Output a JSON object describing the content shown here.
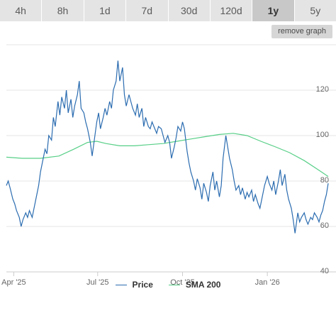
{
  "timeframes": {
    "tabs": [
      {
        "label": "4h",
        "active": false
      },
      {
        "label": "8h",
        "active": false
      },
      {
        "label": "1d",
        "active": false
      },
      {
        "label": "7d",
        "active": false
      },
      {
        "label": "30d",
        "active": false
      },
      {
        "label": "120d",
        "active": false
      },
      {
        "label": "1y",
        "active": true
      },
      {
        "label": "5y",
        "active": false
      }
    ]
  },
  "remove_graph_label": "remove graph",
  "colors": {
    "price": "#2b6cb0",
    "sma": "#57cf87",
    "gridline": "#e6e6e6",
    "axis": "#cccccc",
    "tab_bg": "#e4e4e4",
    "tab_active_bg": "#c8c8c8"
  },
  "chart_data": {
    "type": "line",
    "x_range": [
      "2025-03-24",
      "2026-03-08"
    ],
    "ylim": [
      40,
      140
    ],
    "y_ticks": [
      40,
      60,
      80,
      100,
      120
    ],
    "x_ticks": [
      {
        "label": "Apr '25",
        "date": "2025-04-01"
      },
      {
        "label": "Jul '25",
        "date": "2025-07-01"
      },
      {
        "label": "Oct '25",
        "date": "2025-10-01"
      },
      {
        "label": "Jan '26",
        "date": "2026-01-01"
      }
    ],
    "grid": true,
    "legend_position": "bottom-center",
    "series": [
      {
        "name": "Price",
        "points": [
          [
            "2025-03-24",
            78
          ],
          [
            "2025-03-26",
            80
          ],
          [
            "2025-03-28",
            77
          ],
          [
            "2025-03-31",
            72
          ],
          [
            "2025-04-02",
            70
          ],
          [
            "2025-04-04",
            67
          ],
          [
            "2025-04-07",
            64
          ],
          [
            "2025-04-09",
            60
          ],
          [
            "2025-04-11",
            63
          ],
          [
            "2025-04-14",
            66
          ],
          [
            "2025-04-16",
            64
          ],
          [
            "2025-04-18",
            67
          ],
          [
            "2025-04-21",
            64
          ],
          [
            "2025-04-23",
            68
          ],
          [
            "2025-04-25",
            72
          ],
          [
            "2025-04-28",
            78
          ],
          [
            "2025-04-30",
            84
          ],
          [
            "2025-05-02",
            88
          ],
          [
            "2025-05-05",
            94
          ],
          [
            "2025-05-07",
            92
          ],
          [
            "2025-05-09",
            100
          ],
          [
            "2025-05-12",
            98
          ],
          [
            "2025-05-14",
            108
          ],
          [
            "2025-05-16",
            104
          ],
          [
            "2025-05-19",
            115
          ],
          [
            "2025-05-21",
            109
          ],
          [
            "2025-05-23",
            117
          ],
          [
            "2025-05-26",
            112
          ],
          [
            "2025-05-28",
            120
          ],
          [
            "2025-05-30",
            110
          ],
          [
            "2025-06-02",
            116
          ],
          [
            "2025-06-04",
            108
          ],
          [
            "2025-06-06",
            113
          ],
          [
            "2025-06-09",
            118
          ],
          [
            "2025-06-11",
            124
          ],
          [
            "2025-06-13",
            112
          ],
          [
            "2025-06-16",
            110
          ],
          [
            "2025-06-18",
            106
          ],
          [
            "2025-06-20",
            103
          ],
          [
            "2025-06-23",
            97
          ],
          [
            "2025-06-25",
            91
          ],
          [
            "2025-06-27",
            97
          ],
          [
            "2025-06-30",
            106
          ],
          [
            "2025-07-02",
            110
          ],
          [
            "2025-07-04",
            103
          ],
          [
            "2025-07-07",
            108
          ],
          [
            "2025-07-09",
            112
          ],
          [
            "2025-07-11",
            109
          ],
          [
            "2025-07-14",
            115
          ],
          [
            "2025-07-16",
            112
          ],
          [
            "2025-07-18",
            120
          ],
          [
            "2025-07-21",
            124
          ],
          [
            "2025-07-23",
            133
          ],
          [
            "2025-07-25",
            124
          ],
          [
            "2025-07-28",
            130
          ],
          [
            "2025-07-30",
            118
          ],
          [
            "2025-08-01",
            113
          ],
          [
            "2025-08-04",
            118
          ],
          [
            "2025-08-06",
            115
          ],
          [
            "2025-08-08",
            112
          ],
          [
            "2025-08-11",
            109
          ],
          [
            "2025-08-13",
            114
          ],
          [
            "2025-08-15",
            108
          ],
          [
            "2025-08-18",
            112
          ],
          [
            "2025-08-20",
            104
          ],
          [
            "2025-08-22",
            108
          ],
          [
            "2025-08-25",
            104
          ],
          [
            "2025-08-27",
            103
          ],
          [
            "2025-08-29",
            106
          ],
          [
            "2025-09-01",
            103
          ],
          [
            "2025-09-03",
            101
          ],
          [
            "2025-09-05",
            104
          ],
          [
            "2025-09-08",
            103
          ],
          [
            "2025-09-10",
            100
          ],
          [
            "2025-09-12",
            97
          ],
          [
            "2025-09-15",
            100
          ],
          [
            "2025-09-17",
            97
          ],
          [
            "2025-09-19",
            90
          ],
          [
            "2025-09-22",
            95
          ],
          [
            "2025-09-24",
            99
          ],
          [
            "2025-09-26",
            104
          ],
          [
            "2025-09-29",
            102
          ],
          [
            "2025-10-01",
            106
          ],
          [
            "2025-10-03",
            103
          ],
          [
            "2025-10-06",
            93
          ],
          [
            "2025-10-08",
            88
          ],
          [
            "2025-10-10",
            84
          ],
          [
            "2025-10-13",
            80
          ],
          [
            "2025-10-15",
            76
          ],
          [
            "2025-10-17",
            81
          ],
          [
            "2025-10-20",
            77
          ],
          [
            "2025-10-22",
            72
          ],
          [
            "2025-10-24",
            79
          ],
          [
            "2025-10-27",
            75
          ],
          [
            "2025-10-29",
            71
          ],
          [
            "2025-10-31",
            78
          ],
          [
            "2025-11-03",
            84
          ],
          [
            "2025-11-05",
            76
          ],
          [
            "2025-11-07",
            80
          ],
          [
            "2025-11-10",
            73
          ],
          [
            "2025-11-12",
            78
          ],
          [
            "2025-11-14",
            90
          ],
          [
            "2025-11-17",
            100
          ],
          [
            "2025-11-19",
            95
          ],
          [
            "2025-11-21",
            90
          ],
          [
            "2025-11-24",
            85
          ],
          [
            "2025-11-26",
            80
          ],
          [
            "2025-11-28",
            76
          ],
          [
            "2025-12-01",
            78
          ],
          [
            "2025-12-03",
            74
          ],
          [
            "2025-12-05",
            77
          ],
          [
            "2025-12-08",
            72
          ],
          [
            "2025-12-10",
            75
          ],
          [
            "2025-12-12",
            73
          ],
          [
            "2025-12-15",
            76
          ],
          [
            "2025-12-17",
            71
          ],
          [
            "2025-12-19",
            74
          ],
          [
            "2025-12-22",
            70
          ],
          [
            "2025-12-24",
            68
          ],
          [
            "2025-12-26",
            72
          ],
          [
            "2025-12-29",
            78
          ],
          [
            "2026-01-01",
            82
          ],
          [
            "2026-01-03",
            79
          ],
          [
            "2026-01-06",
            76
          ],
          [
            "2026-01-08",
            80
          ],
          [
            "2026-01-10",
            74
          ],
          [
            "2026-01-13",
            80
          ],
          [
            "2026-01-15",
            85
          ],
          [
            "2026-01-17",
            78
          ],
          [
            "2026-01-20",
            83
          ],
          [
            "2026-01-22",
            76
          ],
          [
            "2026-01-24",
            72
          ],
          [
            "2026-01-27",
            68
          ],
          [
            "2026-01-29",
            63
          ],
          [
            "2026-01-31",
            57
          ],
          [
            "2026-02-03",
            66
          ],
          [
            "2026-02-05",
            62
          ],
          [
            "2026-02-07",
            64
          ],
          [
            "2026-02-10",
            66
          ],
          [
            "2026-02-12",
            63
          ],
          [
            "2026-02-14",
            61
          ],
          [
            "2026-02-17",
            64
          ],
          [
            "2026-02-19",
            63
          ],
          [
            "2026-02-21",
            66
          ],
          [
            "2026-02-24",
            64
          ],
          [
            "2026-02-26",
            62
          ],
          [
            "2026-02-28",
            65
          ],
          [
            "2026-03-02",
            67
          ],
          [
            "2026-03-04",
            71
          ],
          [
            "2026-03-06",
            74
          ],
          [
            "2026-03-08",
            79
          ]
        ]
      },
      {
        "name": "SMA 200",
        "points": [
          [
            "2025-03-24",
            90.5
          ],
          [
            "2025-04-10",
            90
          ],
          [
            "2025-04-30",
            90
          ],
          [
            "2025-05-20",
            91
          ],
          [
            "2025-06-05",
            94
          ],
          [
            "2025-06-20",
            97
          ],
          [
            "2025-06-30",
            97.5
          ],
          [
            "2025-07-10",
            96.5
          ],
          [
            "2025-07-25",
            95.5
          ],
          [
            "2025-08-10",
            95.5
          ],
          [
            "2025-08-25",
            96
          ],
          [
            "2025-09-10",
            96.5
          ],
          [
            "2025-09-25",
            97.5
          ],
          [
            "2025-10-10",
            98.5
          ],
          [
            "2025-10-25",
            99.5
          ],
          [
            "2025-11-10",
            100.5
          ],
          [
            "2025-11-25",
            101
          ],
          [
            "2025-12-10",
            100
          ],
          [
            "2025-12-25",
            97.5
          ],
          [
            "2026-01-10",
            95
          ],
          [
            "2026-01-25",
            92.5
          ],
          [
            "2026-02-10",
            89
          ],
          [
            "2026-02-25",
            85
          ],
          [
            "2026-03-08",
            82
          ]
        ]
      }
    ]
  }
}
